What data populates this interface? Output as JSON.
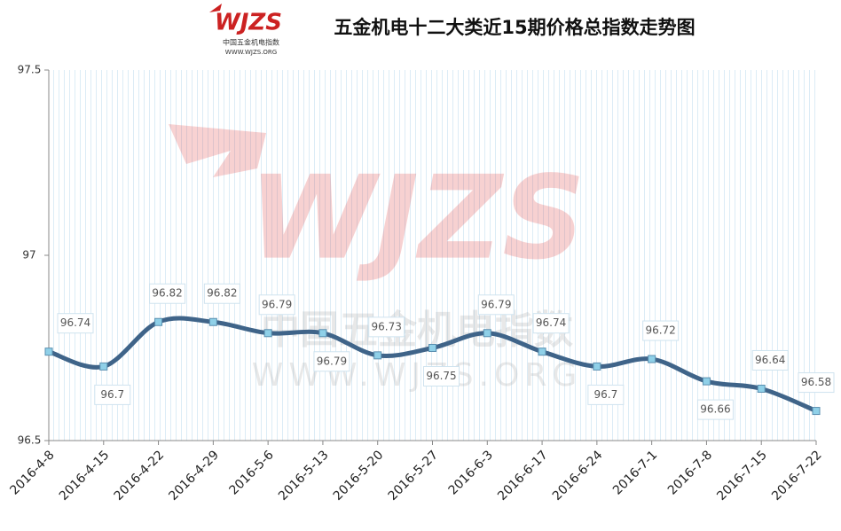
{
  "logo": {
    "mark": "WJZS",
    "name": "中国五金机电指数",
    "url": "WWW.WJZS.ORG"
  },
  "watermark": {
    "mark": "WJZS",
    "name": "中国五金机电指数",
    "url": "WWW.WJZS.ORG"
  },
  "chart_data": {
    "type": "line",
    "title": "五金机电十二大类近15期价格总指数走势图",
    "categories": [
      "2016-4-8",
      "2016-4-15",
      "2016-4-22",
      "2016-4-29",
      "2016-5-6",
      "2016-5-13",
      "2016-5-20",
      "2016-5-27",
      "2016-6-3",
      "2016-6-17",
      "2016-6-24",
      "2016-7-1",
      "2016-7-8",
      "2016-7-15",
      "2016-7-22"
    ],
    "series": [
      {
        "color": "#3f6489",
        "values": [
          96.74,
          96.7,
          96.82,
          96.82,
          96.79,
          96.79,
          96.73,
          96.75,
          96.79,
          96.74,
          96.7,
          96.72,
          96.66,
          96.64,
          96.58
        ]
      }
    ],
    "ylim": [
      96.5,
      97.5
    ],
    "yticks": [
      96.5,
      97.0,
      97.5
    ],
    "marker_color": "#8fd0e8"
  }
}
